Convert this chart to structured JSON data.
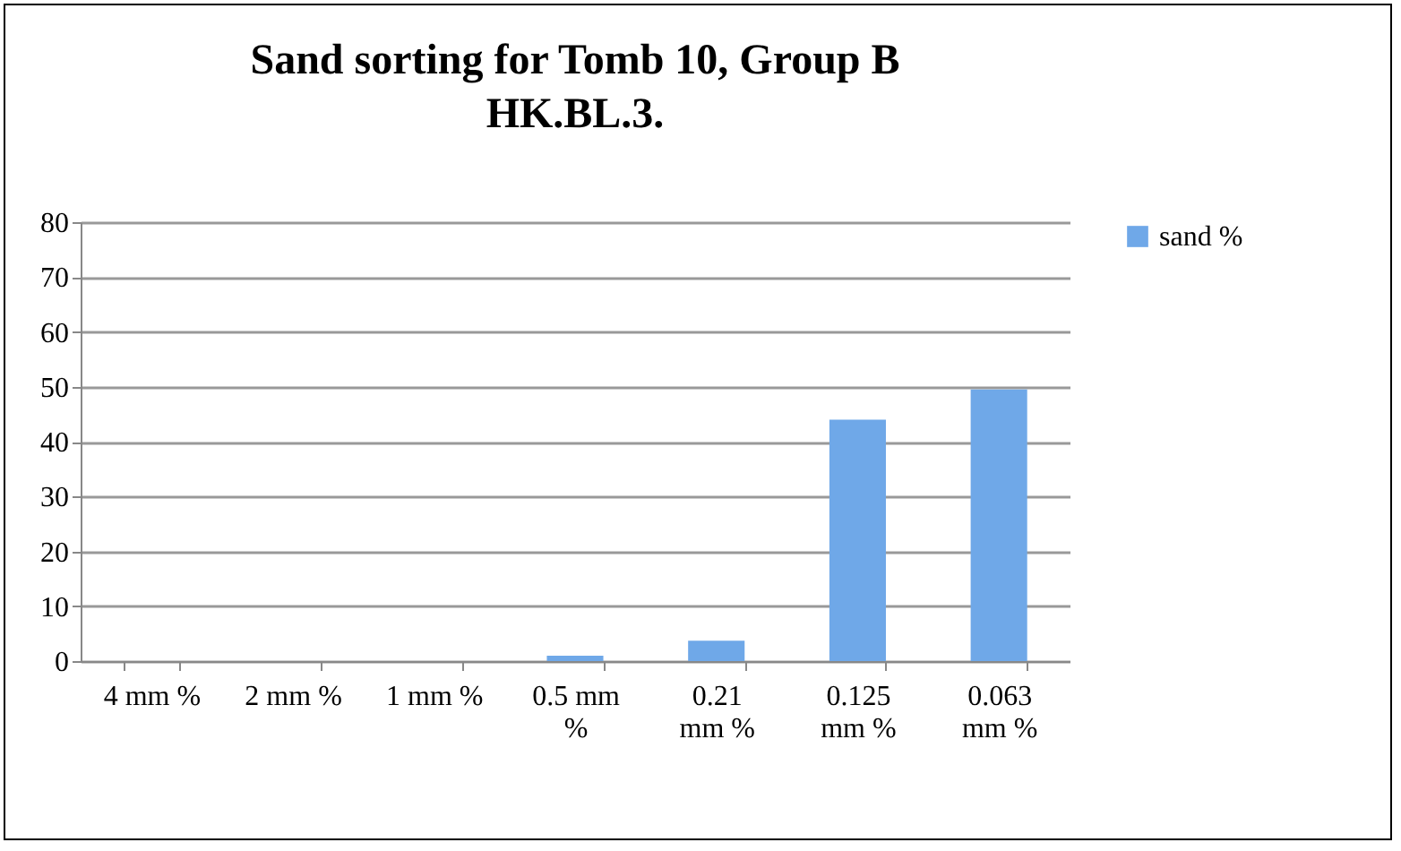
{
  "chart_data": {
    "type": "bar",
    "title": [
      "Sand sorting for Tomb 10, Group B",
      "HK.BL.3."
    ],
    "categories": [
      "4 mm %",
      "2 mm %",
      "1 mm %",
      "0.5 mm %",
      "0.21 mm %",
      "0.125 mm %",
      "0.063 mm %"
    ],
    "series": [
      {
        "name": "sand  %",
        "color": "#6fa8e8",
        "values": [
          0,
          0,
          0,
          1,
          3.7,
          44,
          49.5
        ]
      }
    ],
    "ylim": [
      0,
      80
    ],
    "yticks": [
      0,
      10,
      20,
      30,
      40,
      50,
      60,
      70,
      80
    ],
    "grid": "y",
    "legend": "right"
  }
}
